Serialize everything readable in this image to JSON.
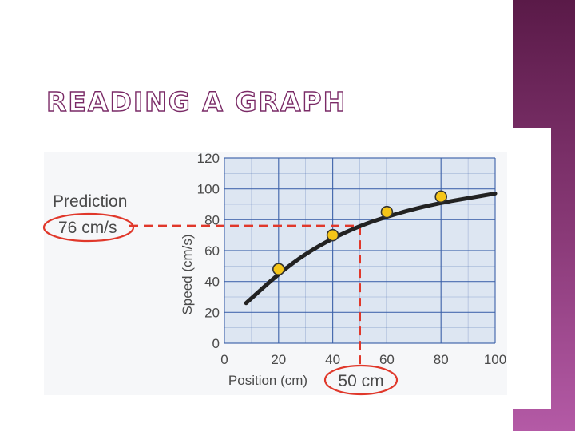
{
  "slide": {
    "title": "READING A GRAPH",
    "accent_color": "#7a2a66"
  },
  "chart_data": {
    "type": "line",
    "xlabel": "Position (cm)",
    "ylabel": "Speed (cm/s)",
    "x_ticks": [
      0,
      20,
      40,
      60,
      80,
      100
    ],
    "y_ticks": [
      0,
      20,
      40,
      60,
      80,
      100,
      120
    ],
    "xlim": [
      0,
      100
    ],
    "ylim": [
      0,
      120
    ],
    "grid": true,
    "curve": {
      "x": [
        8,
        20,
        30,
        40,
        50,
        60,
        70,
        80,
        90,
        100
      ],
      "y": [
        26,
        45,
        58,
        68,
        76,
        82,
        87,
        91,
        94,
        97
      ]
    },
    "points": [
      {
        "x": 20,
        "y": 48
      },
      {
        "x": 40,
        "y": 70
      },
      {
        "x": 60,
        "y": 85
      },
      {
        "x": 80,
        "y": 95
      }
    ],
    "prediction": {
      "label": "Prediction",
      "value_label": "76 cm/s",
      "x_label": "50 cm",
      "x": 50,
      "y": 76
    },
    "colors": {
      "plot_bg": "#dde6f2",
      "grid": "#3a5fa8",
      "curve": "#222222",
      "point": "#f5c518",
      "dashed": "#e0382b",
      "text": "#4a4a4a"
    }
  }
}
